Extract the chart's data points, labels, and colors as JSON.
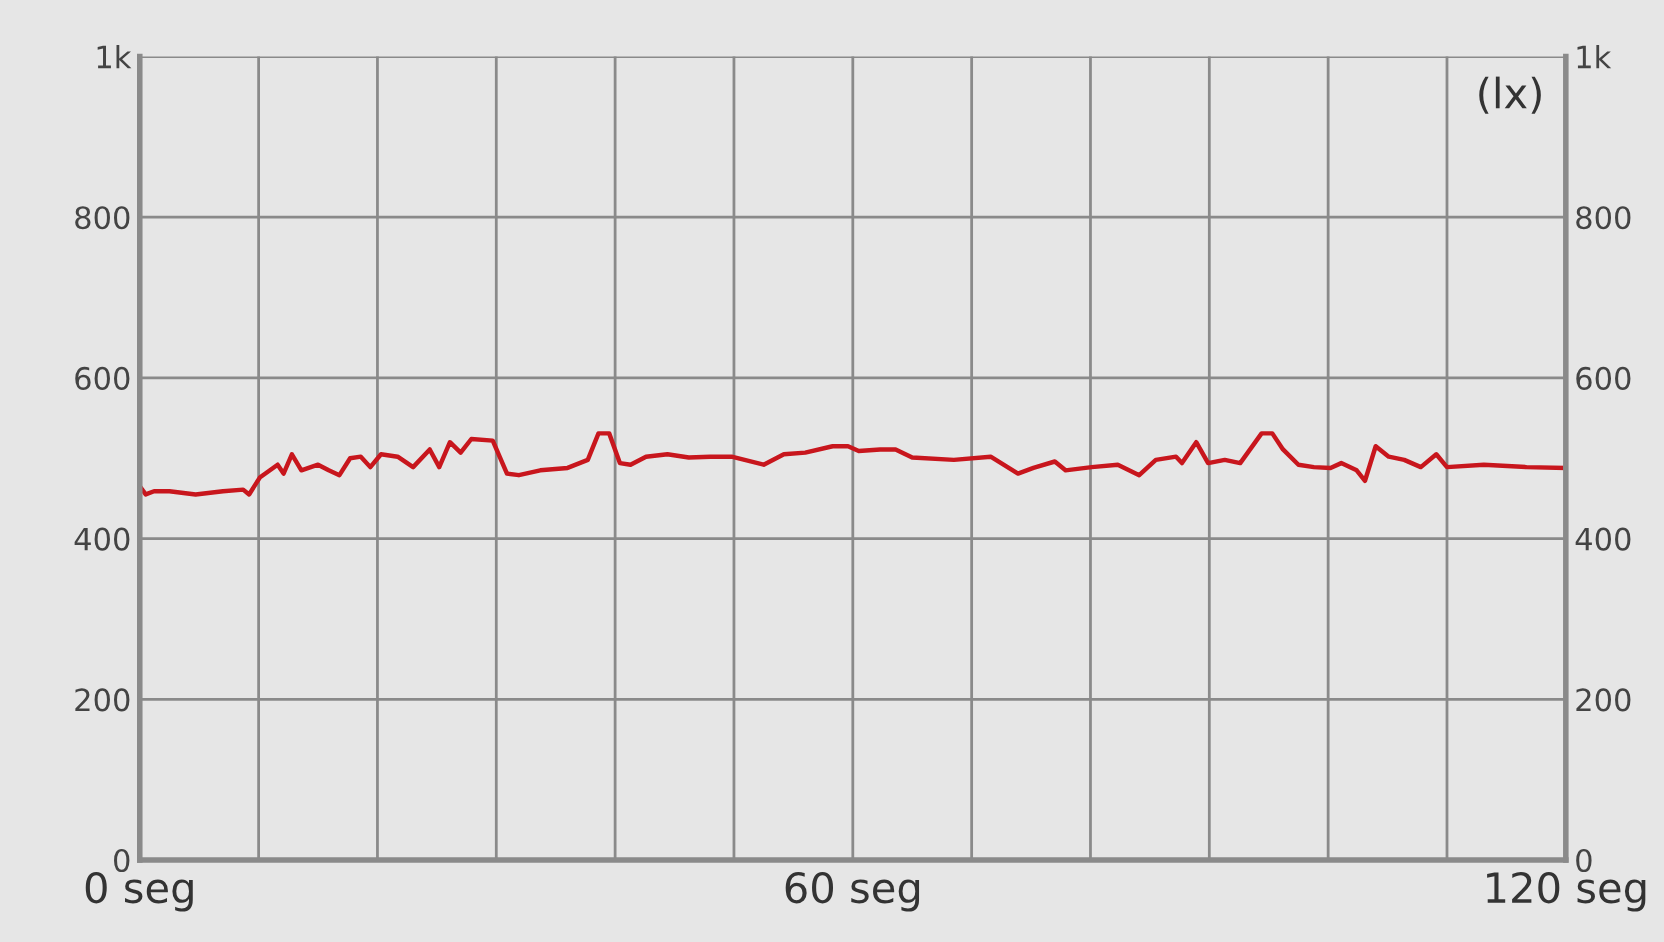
{
  "chart_data": {
    "type": "line",
    "y2label": "(lx)",
    "x": [
      0,
      0.5,
      1.2,
      2.5,
      4.7,
      7,
      8.7,
      9.2,
      10.1,
      11.6,
      12.1,
      12.8,
      13.6,
      15,
      15.9,
      16.8,
      17.7,
      18.6,
      19.4,
      20.3,
      21.7,
      23,
      24.4,
      25.2,
      26.1,
      27,
      27.9,
      29.7,
      30.9,
      31.9,
      33.7,
      36,
      37.7,
      38.6,
      39.5,
      40.4,
      41.3,
      42.6,
      44.4,
      46.2,
      48,
      49.8,
      52.5,
      54.2,
      56,
      58.3,
      59.6,
      60.5,
      62.3,
      63.6,
      65,
      68.5,
      71.6,
      73.9,
      75.2,
      77,
      77.9,
      80.1,
      82.3,
      84.1,
      85.5,
      87.2,
      87.7,
      88.9,
      89.9,
      91.3,
      92.6,
      94.4,
      95.3,
      96.2,
      97.5,
      98.8,
      100.2,
      101.1,
      102.4,
      103.1,
      104,
      105.1,
      106.4,
      107.8,
      109.1,
      110,
      113.1,
      116.7,
      120
    ],
    "series": [
      {
        "color": "#c8161d",
        "values": [
          465,
          455,
          459,
          459,
          455,
          459,
          461,
          455,
          476,
          492,
          481,
          505,
          485,
          492,
          485,
          479,
          500,
          502,
          489,
          505,
          502,
          489,
          511,
          489,
          520,
          507,
          524,
          522,
          481,
          479,
          485,
          488,
          498,
          531,
          531,
          494,
          492,
          502,
          505,
          501,
          502,
          502,
          492,
          505,
          507,
          515,
          515,
          509,
          511,
          511,
          501,
          498,
          502,
          481,
          488,
          496,
          485,
          489,
          492,
          479,
          498,
          502,
          494,
          520,
          494,
          498,
          494,
          531,
          531,
          511,
          492,
          489,
          488,
          494,
          485,
          472,
          515,
          502,
          498,
          489,
          505,
          489,
          492,
          489,
          488
        ]
      }
    ],
    "xlim": [
      0,
      120
    ],
    "xticks": [
      {
        "value": 0,
        "label": "0 seg"
      },
      {
        "value": 10,
        "label": null
      },
      {
        "value": 20,
        "label": null
      },
      {
        "value": 30,
        "label": null
      },
      {
        "value": 40,
        "label": null
      },
      {
        "value": 50,
        "label": null
      },
      {
        "value": 60,
        "label": "60 seg"
      },
      {
        "value": 70,
        "label": null
      },
      {
        "value": 80,
        "label": null
      },
      {
        "value": 90,
        "label": null
      },
      {
        "value": 100,
        "label": null
      },
      {
        "value": 110,
        "label": null
      },
      {
        "value": 120,
        "label": "120 seg"
      }
    ],
    "ylim": [
      0,
      1000
    ],
    "yticks": [
      0,
      200,
      400,
      600,
      800,
      {
        "value": 1000,
        "label": "1k"
      }
    ],
    "y2lim": [
      0,
      1000
    ],
    "y2ticks": [
      0,
      200,
      400,
      600,
      800,
      {
        "value": 1000,
        "label": "1k"
      }
    ],
    "grid": true,
    "legend": false,
    "marker": "none",
    "line_style": "solid"
  }
}
